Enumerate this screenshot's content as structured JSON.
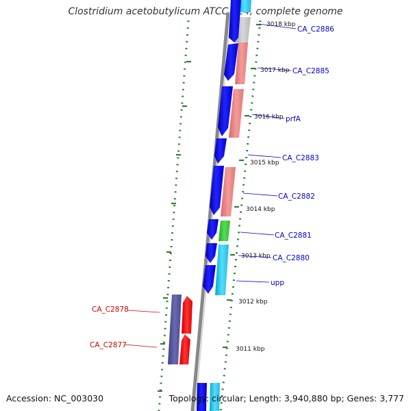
{
  "title": "Clostridium acetobutylicum ATCC 824, complete genome",
  "footer": {
    "accession": "Accession: NC_003030",
    "topology": "Topology: circular; Length: 3,940,880 bp; Genes: 3,777"
  },
  "colors": {
    "strand_plus_primary": "#0000ee",
    "strand_minus": "#ee0000",
    "backbone": "#888888",
    "tick_mark": "#2e7d32",
    "label_plus": "#0000cc",
    "label_minus": "#cc0000"
  },
  "kbp_labels": [
    "3018 kbp",
    "3017 kbp",
    "3016 kbp",
    "3015 kbp",
    "3014 kbp",
    "3013 kbp",
    "3012 kbp",
    "3011 kbp"
  ],
  "gene_labels_plus": [
    "CA_C2886",
    "CA_C2885",
    "prfA",
    "CA_C2883",
    "CA_C2882",
    "CA_C2881",
    "CA_C2880",
    "upp"
  ],
  "gene_labels_minus": [
    "CA_C2878",
    "CA_C2877"
  ]
}
